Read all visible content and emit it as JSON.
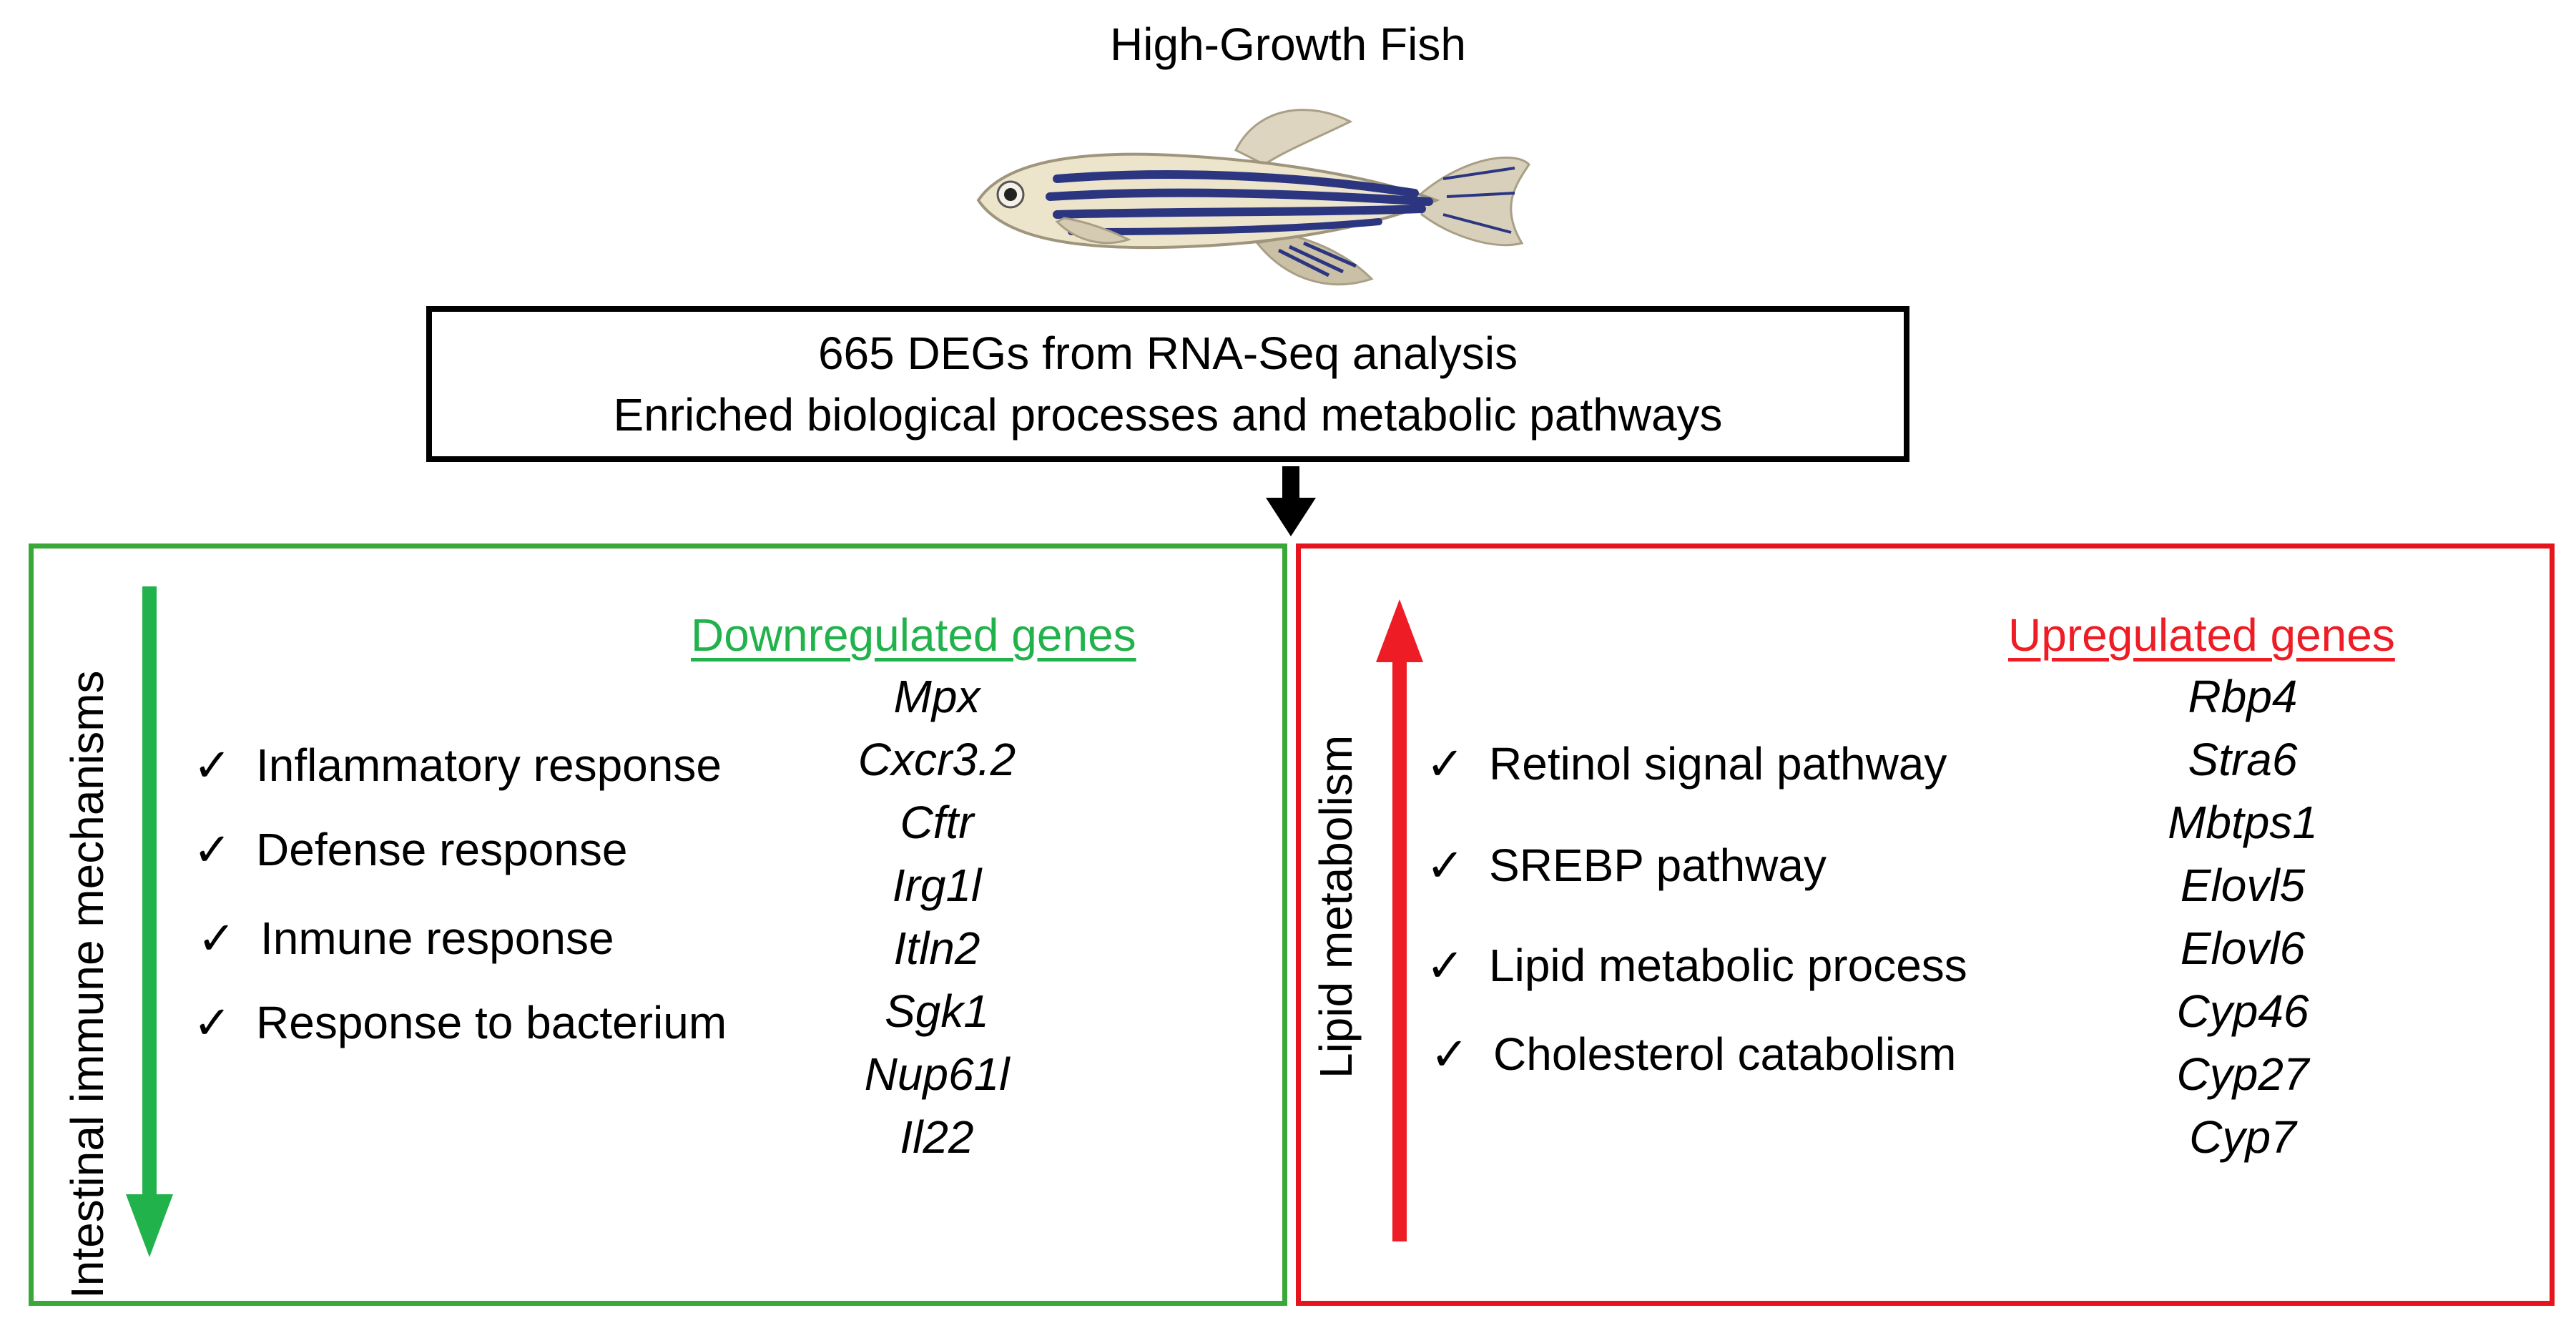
{
  "title": "High-Growth Fish",
  "icons": {
    "fish": "zebrafish-illustration",
    "check": "✓",
    "downArrow": "arrow-down",
    "upArrow": "arrow-up"
  },
  "summary": {
    "line1": "665 DEGs from RNA-Seq analysis",
    "line2": "Enriched biological processes and metabolic pathways"
  },
  "colors": {
    "green_border": "#3aa838",
    "green_text": "#22b24c",
    "red_border": "#e6141c",
    "red_text": "#ee1c24"
  },
  "left_panel": {
    "side_label": "Intestinal immune mechanisms",
    "heading": "Downregulated genes",
    "processes": [
      "Inflammatory response",
      "Defense response",
      "Inmune response",
      "Response to bacterium"
    ],
    "genes": [
      "Mpx",
      "Cxcr3.2",
      "Cftr",
      "Irg1l",
      "Itln2",
      "Sgk1",
      "Nup61l",
      "Il22"
    ]
  },
  "right_panel": {
    "side_label": "Lipid metabolism",
    "heading": "Upregulated genes",
    "processes": [
      "Retinol signal pathway",
      "SREBP pathway",
      "Lipid metabolic process",
      "Cholesterol catabolism"
    ],
    "genes": [
      "Rbp4",
      "Stra6",
      "Mbtps1",
      "Elovl5",
      "Elovl6",
      "Cyp46",
      "Cyp27",
      "Cyp7"
    ]
  }
}
